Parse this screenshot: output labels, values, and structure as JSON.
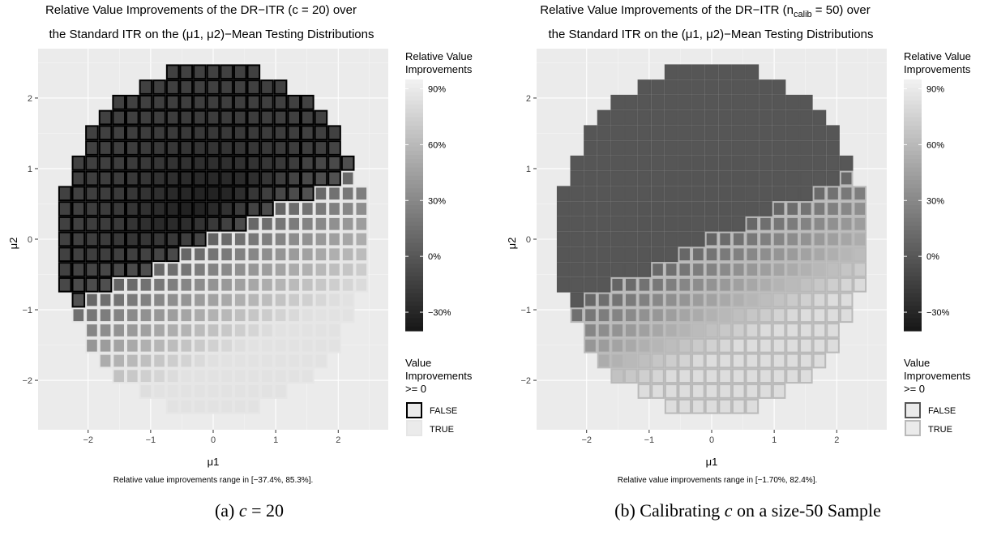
{
  "colors": {
    "panel_bg": "#ebebeb",
    "grid_major": "#ffffff",
    "border_false_a": "#000000",
    "border_true_a": "#e6e6e6",
    "border_false_b": "#555555",
    "border_true_b": "#b9b9b9",
    "fill_low": "#161616",
    "fill_high": "#f2f2f2"
  },
  "chart_data": [
    {
      "id": "a",
      "type": "heatmap",
      "title_lines": [
        "Relative Value Improvements of the DR−ITR (c = 20) over",
        "the Standard ITR on the (μ1, μ2)−Mean Testing Distributions"
      ],
      "xlabel": "μ1",
      "ylabel": "μ2",
      "xlim": [
        -2.8,
        2.8
      ],
      "ylim": [
        -2.7,
        2.7
      ],
      "x_ticks": [
        -2,
        -1,
        0,
        1,
        2
      ],
      "y_ticks": [
        -2,
        -1,
        0,
        1,
        2
      ],
      "grid": true,
      "tile_width": 0.2154,
      "value_legend_title_lines": [
        "Relative Value",
        "Improvements"
      ],
      "value_legend_ticks": [
        "90%",
        "60%",
        "30%",
        "0%",
        "−30%"
      ],
      "value_legend_tick_values": [
        90,
        60,
        30,
        0,
        -30
      ],
      "value_range": [
        -37.4,
        85.3
      ],
      "bool_legend_title_lines": [
        "Value",
        "Improvements",
        ">= 0"
      ],
      "bool_legend_entries": [
        "FALSE",
        "TRUE"
      ],
      "caption": "Relative value improvements range in [−37.4%, 85.3%].",
      "model": {
        "angle_deg": 67,
        "boundary_offset": 0.0,
        "min_value": -37.4,
        "max_value": 85.3,
        "neg_peak": -37.4,
        "pos_peak": 85.3
      }
    },
    {
      "id": "b",
      "type": "heatmap",
      "title_lines": [
        "Relative Value Improvements of the DR−ITR (n",
        "calib",
        " = 50) over",
        "the Standard ITR on the (μ1, μ2)−Mean Testing Distributions"
      ],
      "xlabel": "μ1",
      "ylabel": "μ2",
      "xlim": [
        -2.8,
        2.8
      ],
      "ylim": [
        -2.7,
        2.7
      ],
      "x_ticks": [
        -2,
        -1,
        0,
        1,
        2
      ],
      "y_ticks": [
        -2,
        -1,
        0,
        1,
        2
      ],
      "grid": true,
      "tile_width": 0.2154,
      "value_legend_title_lines": [
        "Relative Value",
        "Improvements"
      ],
      "value_legend_ticks": [
        "90%",
        "60%",
        "30%",
        "0%",
        "−30%"
      ],
      "value_legend_tick_values": [
        90,
        60,
        30,
        0,
        -30
      ],
      "value_range": [
        -1.7,
        82.4
      ],
      "bool_legend_title_lines": [
        "Value",
        "Improvements",
        ">= 0"
      ],
      "bool_legend_entries": [
        "FALSE",
        "TRUE"
      ],
      "caption": "Relative value improvements range in [−1.70%, 82.4%].",
      "model": {
        "angle_deg": 67,
        "boundary_offset": 0.0,
        "min_value": -1.7,
        "max_value": 82.4,
        "neg_peak": -1.7,
        "pos_peak": 82.4
      }
    }
  ],
  "subcaptions": {
    "a_prefix": "(a) ",
    "a_var": "c",
    "a_rest": " = 20",
    "b_prefix": "(b) Calibrating ",
    "b_var": "c",
    "b_rest": " on a size-50 Sample"
  }
}
